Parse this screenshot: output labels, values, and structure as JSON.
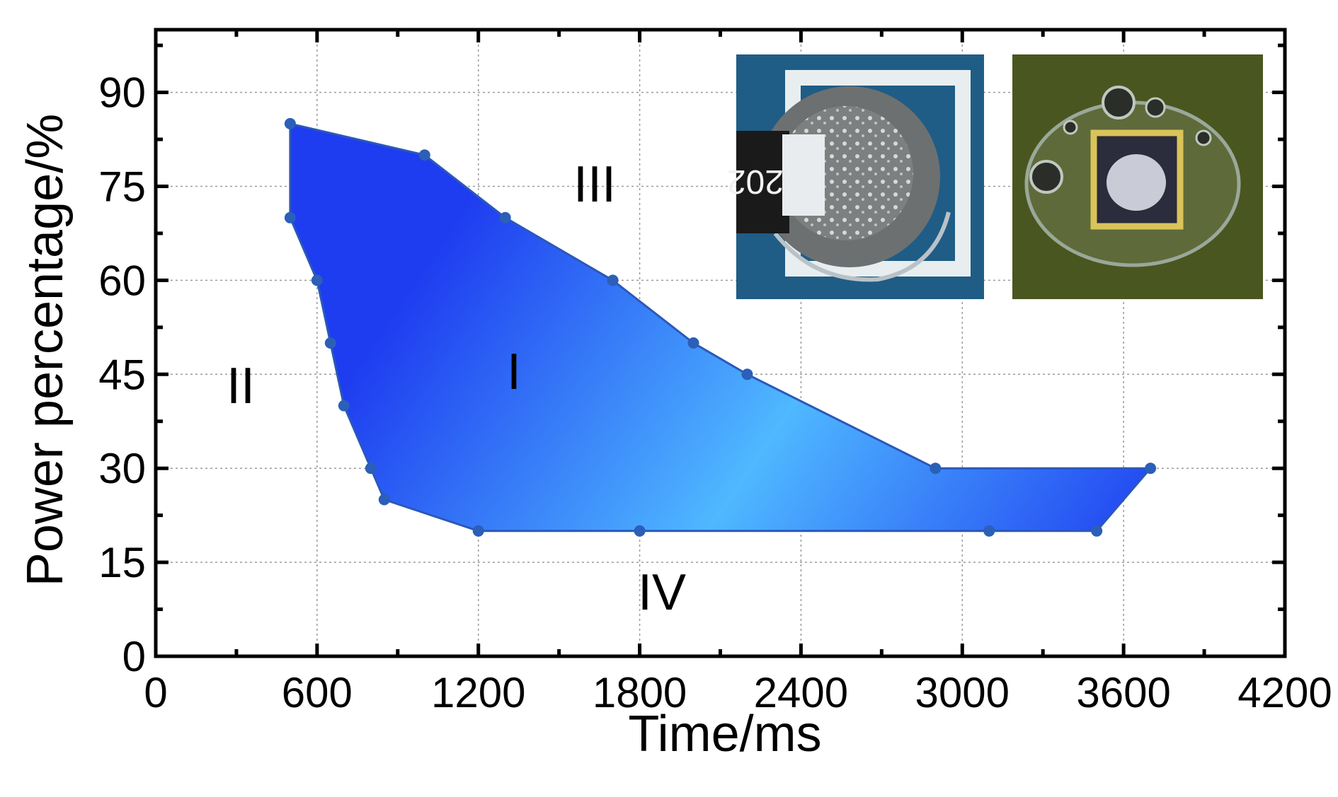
{
  "chart_data": {
    "type": "area",
    "xlabel": "Time/ms",
    "ylabel": "Power percentage/%",
    "xlim": [
      0,
      4200
    ],
    "ylim": [
      0,
      100
    ],
    "x_ticks": [
      0,
      600,
      1200,
      1800,
      2400,
      3000,
      3600,
      4200
    ],
    "y_ticks": [
      0,
      15,
      30,
      45,
      60,
      75,
      90
    ],
    "x_tick_labels": [
      "0",
      "600",
      "1200",
      "1800",
      "2400",
      "3000",
      "3600",
      "4200"
    ],
    "y_tick_labels": [
      "0",
      "15",
      "30",
      "45",
      "60",
      "75",
      "90"
    ],
    "grid": true,
    "region_boundary": [
      {
        "x": 500,
        "y": 85
      },
      {
        "x": 1000,
        "y": 80
      },
      {
        "x": 1300,
        "y": 70
      },
      {
        "x": 1700,
        "y": 60
      },
      {
        "x": 2000,
        "y": 50
      },
      {
        "x": 2200,
        "y": 45
      },
      {
        "x": 2900,
        "y": 30
      },
      {
        "x": 3700,
        "y": 30
      },
      {
        "x": 3500,
        "y": 20
      },
      {
        "x": 3100,
        "y": 20
      },
      {
        "x": 1800,
        "y": 20
      },
      {
        "x": 1200,
        "y": 20
      },
      {
        "x": 850,
        "y": 25
      },
      {
        "x": 800,
        "y": 30
      },
      {
        "x": 700,
        "y": 40
      },
      {
        "x": 650,
        "y": 50
      },
      {
        "x": 600,
        "y": 60
      },
      {
        "x": 500,
        "y": 70
      }
    ],
    "regions": [
      {
        "label": "I",
        "x": 1380,
        "y": 44
      },
      {
        "label": "II",
        "x": 280,
        "y": 42
      },
      {
        "label": "III",
        "x": 1660,
        "y": 75
      },
      {
        "label": "IV",
        "x": 1900,
        "y": 9
      }
    ],
    "colors": {
      "fill_light": "#4fb8ff",
      "fill_dark": "#2a48f0",
      "edge": "#2b58b8",
      "marker": "#2b5fb8"
    },
    "insets": [
      {
        "name": "solder-joint-resistor",
        "label_text": "202"
      },
      {
        "name": "solder-joint-chip"
      }
    ]
  }
}
